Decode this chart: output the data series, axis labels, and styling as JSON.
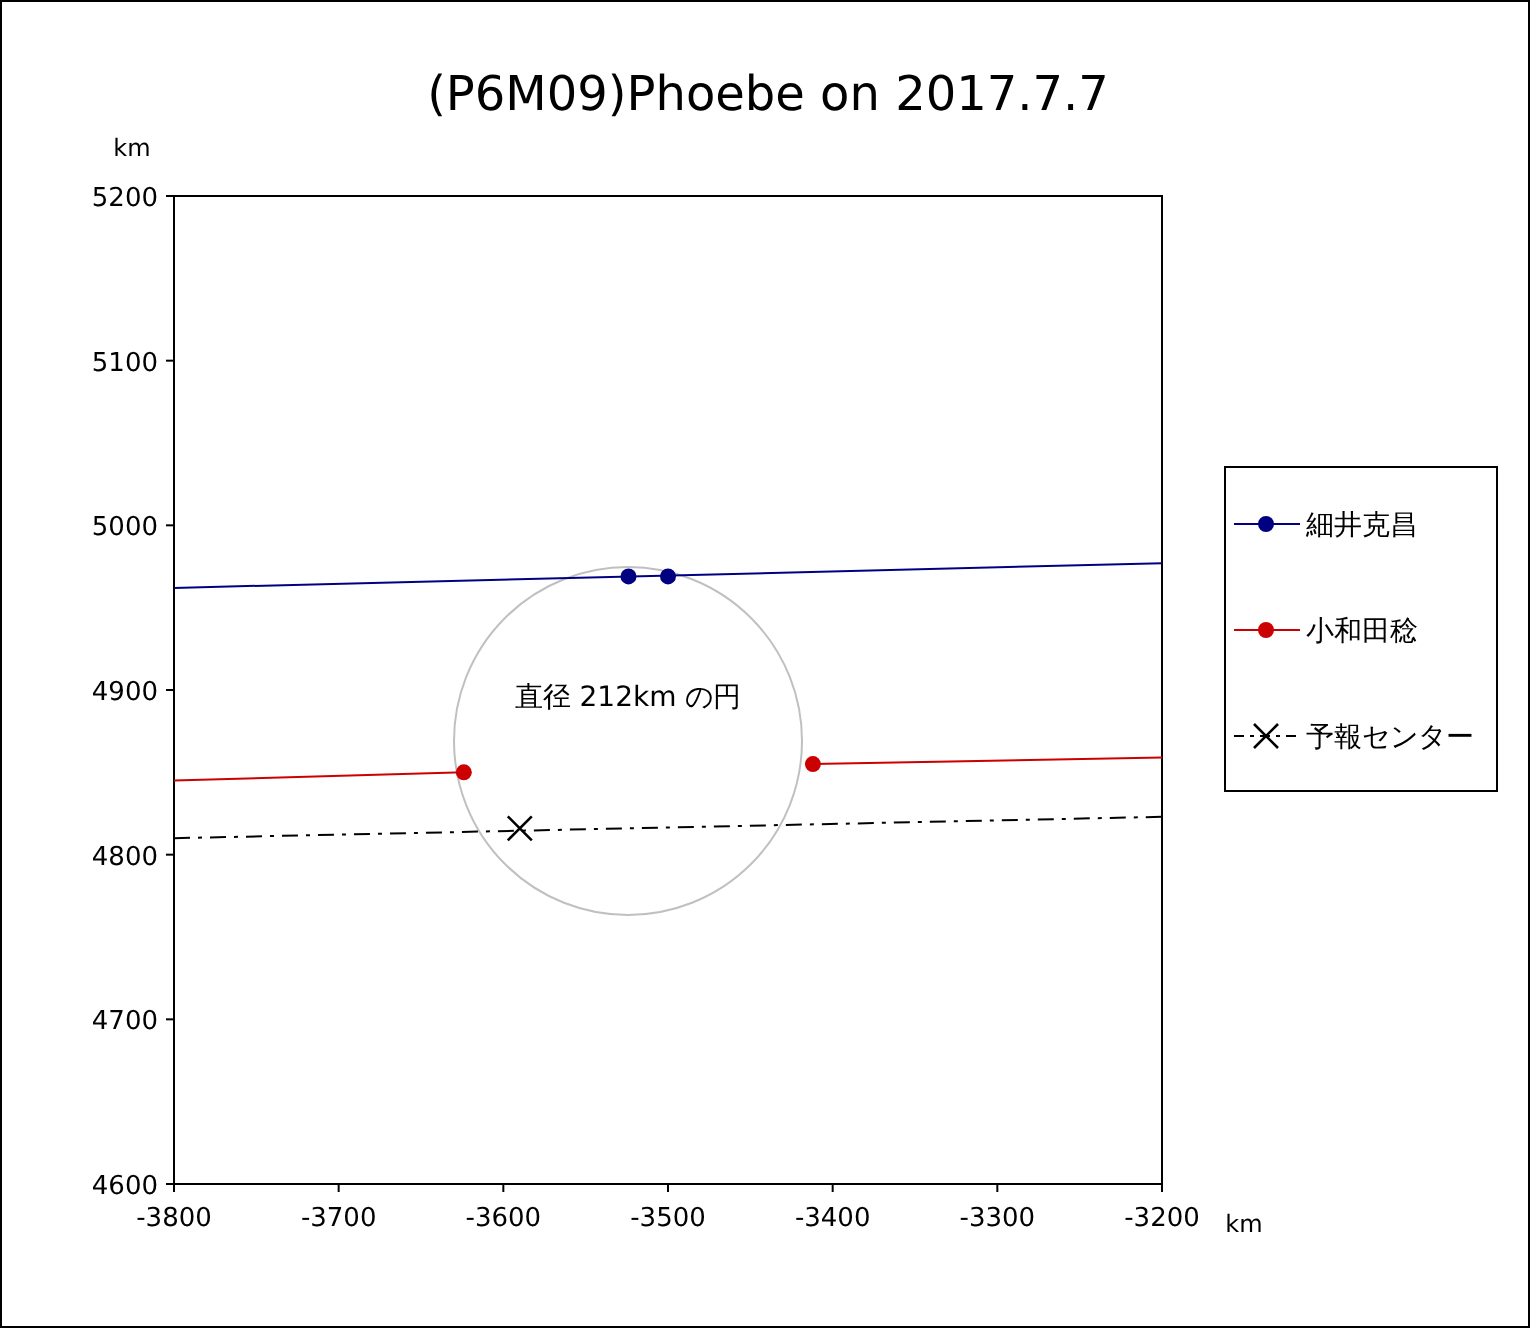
{
  "chart_data": {
    "type": "line",
    "title": "(P6M09)Phoebe on 2017.7.7",
    "xlabel": "km",
    "ylabel": "km",
    "xlim": [
      -3800,
      -3200
    ],
    "ylim": [
      4600,
      5200
    ],
    "xticks": [
      -3800,
      -3700,
      -3600,
      -3500,
      -3400,
      -3300,
      -3200
    ],
    "yticks": [
      4600,
      4700,
      4800,
      4900,
      5000,
      5100,
      5200
    ],
    "legend": "right",
    "annotations": [
      "直径 212km の円"
    ],
    "series": [
      {
        "color": "#000080",
        "x": [
          -3800,
          -3200
        ],
        "values": [
          4962,
          4977
        ]
      },
      {
        "type": "scatter",
        "name": "細井克昌",
        "color": "#000080",
        "marker": "circle",
        "line_style": "solid",
        "x": [
          -3524,
          -3500
        ],
        "values": [
          4969,
          4969
        ]
      },
      {
        "color": "#cc0000",
        "x": [
          -3800,
          -3624
        ],
        "values": [
          4845,
          4850
        ]
      },
      {
        "color": "#cc0000",
        "x": [
          -3412,
          -3200
        ],
        "values": [
          4855,
          4859
        ]
      },
      {
        "type": "scatter",
        "name": "小和田稔",
        "color": "#cc0000",
        "marker": "circle",
        "line_style": "solid",
        "x": [
          -3624,
          -3412
        ],
        "values": [
          4850,
          4855
        ]
      },
      {
        "color": "#000000",
        "line_style": "dashdot",
        "x": [
          -3800,
          -3200
        ],
        "values": [
          4810,
          4823
        ]
      },
      {
        "type": "scatter",
        "name": "予報センター",
        "color": "#000000",
        "marker": "cross",
        "line_style": "dashdot",
        "x": [
          -3590
        ],
        "values": [
          4816
        ]
      }
    ]
  }
}
